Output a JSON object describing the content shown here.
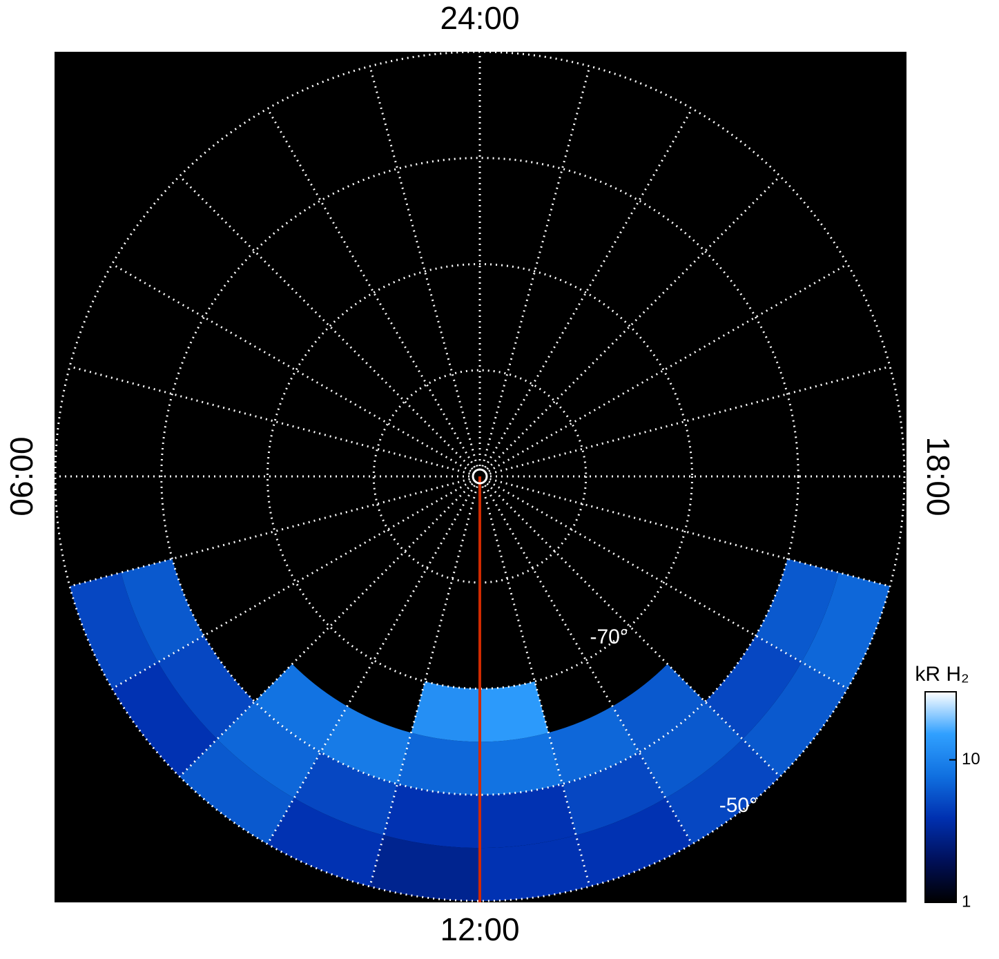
{
  "chart_data": {
    "type": "polar-map",
    "lt_labels": [
      {
        "value": 24,
        "label": "24:00"
      },
      {
        "value": 6,
        "label": "06:00"
      },
      {
        "value": 18,
        "label": "18:00"
      },
      {
        "value": 12,
        "label": "12:00"
      }
    ],
    "lat_lim": [
      -90,
      -50
    ],
    "lat_circles": [
      -80,
      -70,
      -60,
      -50
    ],
    "lat_labels": [
      {
        "value": -70,
        "label": "-70°"
      },
      {
        "value": -50,
        "label": "-50°"
      }
    ],
    "lt_line_step": 1,
    "lat_bins": [
      -50,
      -55,
      -60,
      -65,
      -70
    ],
    "lt_bins": [
      7,
      8,
      9,
      10,
      11,
      12,
      13,
      14,
      15,
      16,
      17
    ],
    "intensity": [
      [
        5,
        4,
        6,
        4,
        3,
        4,
        4,
        5,
        6,
        7
      ],
      [
        6,
        5,
        7,
        5,
        4,
        4,
        5,
        6,
        5,
        6
      ],
      [
        null,
        null,
        8,
        9,
        7,
        8,
        7,
        6,
        null,
        null
      ],
      [
        null,
        null,
        null,
        null,
        12,
        14,
        null,
        null,
        null,
        null
      ]
    ],
    "colorbar": {
      "label": "kR H₂",
      "clim": [
        1,
        30
      ],
      "log_scale": true,
      "ticks": [
        1,
        10
      ],
      "colormap": [
        "#000000",
        "#00105a",
        "#0030b0",
        "#1070e0",
        "#30a0ff",
        "#ffffff"
      ]
    },
    "grid": true
  }
}
